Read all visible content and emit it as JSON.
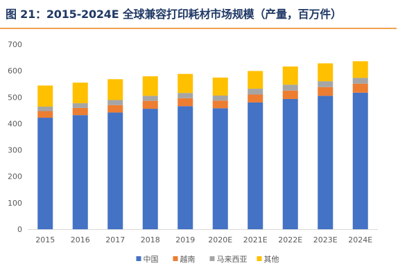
{
  "figure": {
    "title": "图 21：2015-2024E 全球兼容打印耗材市场规模（产量，百万件）"
  },
  "chart_data": {
    "type": "bar",
    "stacked": true,
    "title": "图 21：2015-2024E 全球兼容打印耗材市场规模（产量，百万件）",
    "xlabel": "",
    "ylabel": "",
    "ylim": [
      0,
      700
    ],
    "yticks": [
      0,
      100,
      200,
      300,
      400,
      500,
      600,
      700
    ],
    "grid": false,
    "legend_position": "bottom",
    "categories": [
      "2015",
      "2016",
      "2017",
      "2018",
      "2019",
      "2020E",
      "2021E",
      "2022E",
      "2023E",
      "2024E"
    ],
    "series": [
      {
        "name": "中国",
        "color": "#4472c4",
        "values": [
          422,
          432,
          442,
          456,
          466,
          458,
          480,
          493,
          505,
          517
        ]
      },
      {
        "name": "越南",
        "color": "#ed7d31",
        "values": [
          25,
          27,
          28,
          30,
          30,
          29,
          30,
          32,
          33,
          34
        ]
      },
      {
        "name": "马来西亚",
        "color": "#a5a5a5",
        "values": [
          17,
          18,
          19,
          19,
          20,
          19,
          22,
          22,
          22,
          22
        ]
      },
      {
        "name": "其他",
        "color": "#ffc000",
        "values": [
          80,
          78,
          79,
          74,
          72,
          68,
          67,
          69,
          68,
          63
        ]
      }
    ]
  }
}
